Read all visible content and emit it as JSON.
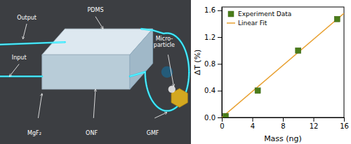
{
  "chart_data": {
    "type": "scatter",
    "xlabel": "Mass (ng)",
    "ylabel": "ΔT (%)",
    "xlim": [
      0,
      16
    ],
    "ylim": [
      0,
      1.65
    ],
    "xticks": [
      0,
      4,
      8,
      12,
      16
    ],
    "yticks": [
      {
        "value": 0.0,
        "label": "0.0"
      },
      0.4,
      0.8,
      1.2,
      1.6
    ],
    "legend": "upper-left",
    "series": [
      {
        "name": "Experiment Data",
        "type": "scatter",
        "marker": "square",
        "color": "#4a7c1a",
        "x": [
          0.5,
          4.7,
          10.0,
          15.1
        ],
        "values": [
          0.02,
          0.4,
          1.0,
          1.47
        ]
      },
      {
        "name": "Linear Fit",
        "type": "line",
        "color": "#e8a030",
        "x": [
          0.0,
          16.0
        ],
        "values": [
          0.0,
          1.5552
        ]
      }
    ],
    "annotations": [
      "PDMS",
      "Output",
      "Input",
      "Micro-\nparticle",
      "MgF₂",
      "ONF",
      "GMF"
    ]
  }
}
